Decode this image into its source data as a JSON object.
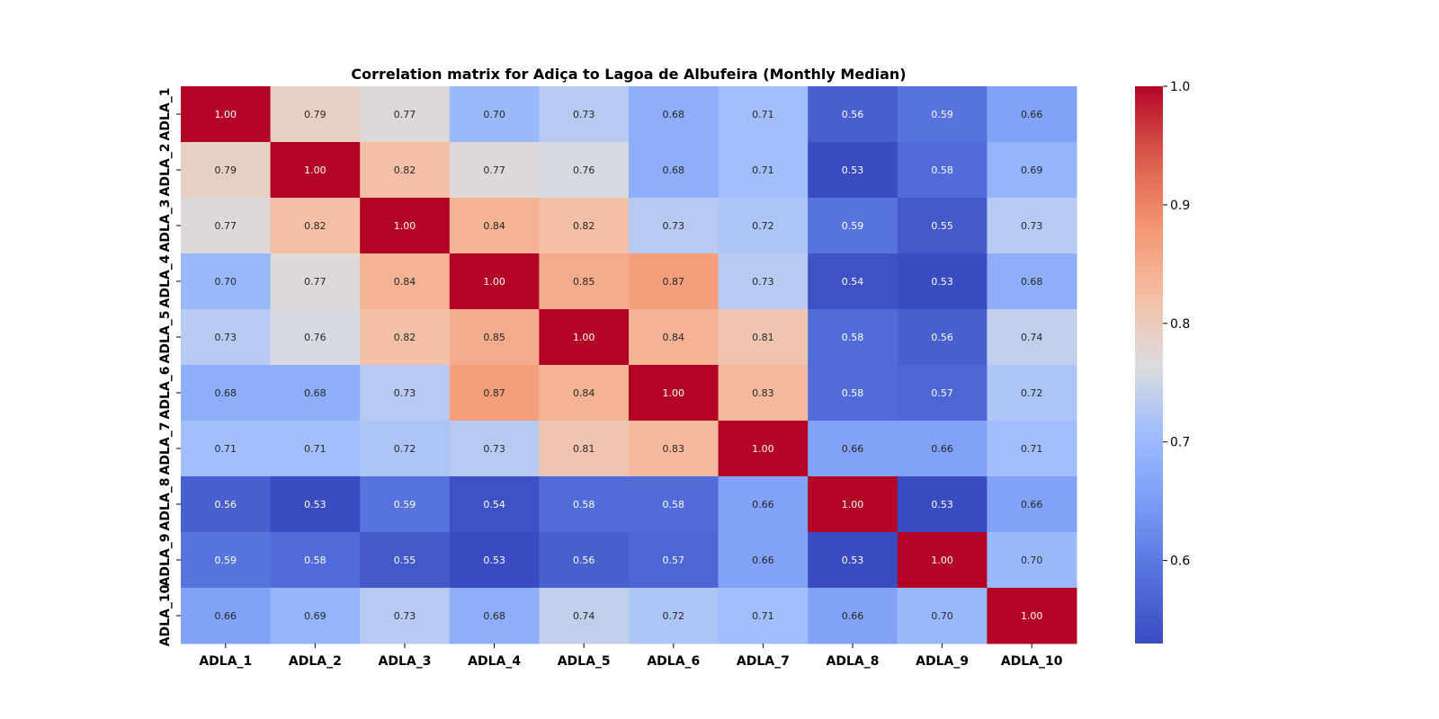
{
  "chart_data": {
    "type": "heatmap",
    "title": "Correlation matrix for Adiça to Lagoa de Albufeira (Monthly Median)",
    "row_labels": [
      "ADLA_1",
      "ADLA_2",
      "ADLA_3",
      "ADLA_4",
      "ADLA_5",
      "ADLA_6",
      "ADLA_7",
      "ADLA_8",
      "ADLA_9",
      "ADLA_10"
    ],
    "col_labels": [
      "ADLA_1",
      "ADLA_2",
      "ADLA_3",
      "ADLA_4",
      "ADLA_5",
      "ADLA_6",
      "ADLA_7",
      "ADLA_8",
      "ADLA_9",
      "ADLA_10"
    ],
    "values": [
      [
        1.0,
        0.79,
        0.77,
        0.7,
        0.73,
        0.68,
        0.71,
        0.56,
        0.59,
        0.66
      ],
      [
        0.79,
        1.0,
        0.82,
        0.77,
        0.76,
        0.68,
        0.71,
        0.53,
        0.58,
        0.69
      ],
      [
        0.77,
        0.82,
        1.0,
        0.84,
        0.82,
        0.73,
        0.72,
        0.59,
        0.55,
        0.73
      ],
      [
        0.7,
        0.77,
        0.84,
        1.0,
        0.85,
        0.87,
        0.73,
        0.54,
        0.53,
        0.68
      ],
      [
        0.73,
        0.76,
        0.82,
        0.85,
        1.0,
        0.84,
        0.81,
        0.58,
        0.56,
        0.74
      ],
      [
        0.68,
        0.68,
        0.73,
        0.87,
        0.84,
        1.0,
        0.83,
        0.58,
        0.57,
        0.72
      ],
      [
        0.71,
        0.71,
        0.72,
        0.73,
        0.81,
        0.83,
        1.0,
        0.66,
        0.66,
        0.71
      ],
      [
        0.56,
        0.53,
        0.59,
        0.54,
        0.58,
        0.58,
        0.66,
        1.0,
        0.53,
        0.66
      ],
      [
        0.59,
        0.58,
        0.55,
        0.53,
        0.56,
        0.57,
        0.66,
        0.53,
        1.0,
        0.7
      ],
      [
        0.66,
        0.69,
        0.73,
        0.68,
        0.74,
        0.72,
        0.71,
        0.66,
        0.7,
        1.0
      ]
    ],
    "colormap": "coolwarm",
    "value_format": "0.00",
    "colorbar": {
      "range": [
        0.53,
        1.0
      ],
      "ticks": [
        0.6,
        0.7,
        0.8,
        0.9,
        1.0
      ],
      "tick_labels": [
        "0.6",
        "0.7",
        "0.8",
        "0.9",
        "1.0"
      ],
      "placement": "right"
    },
    "grid": false
  }
}
